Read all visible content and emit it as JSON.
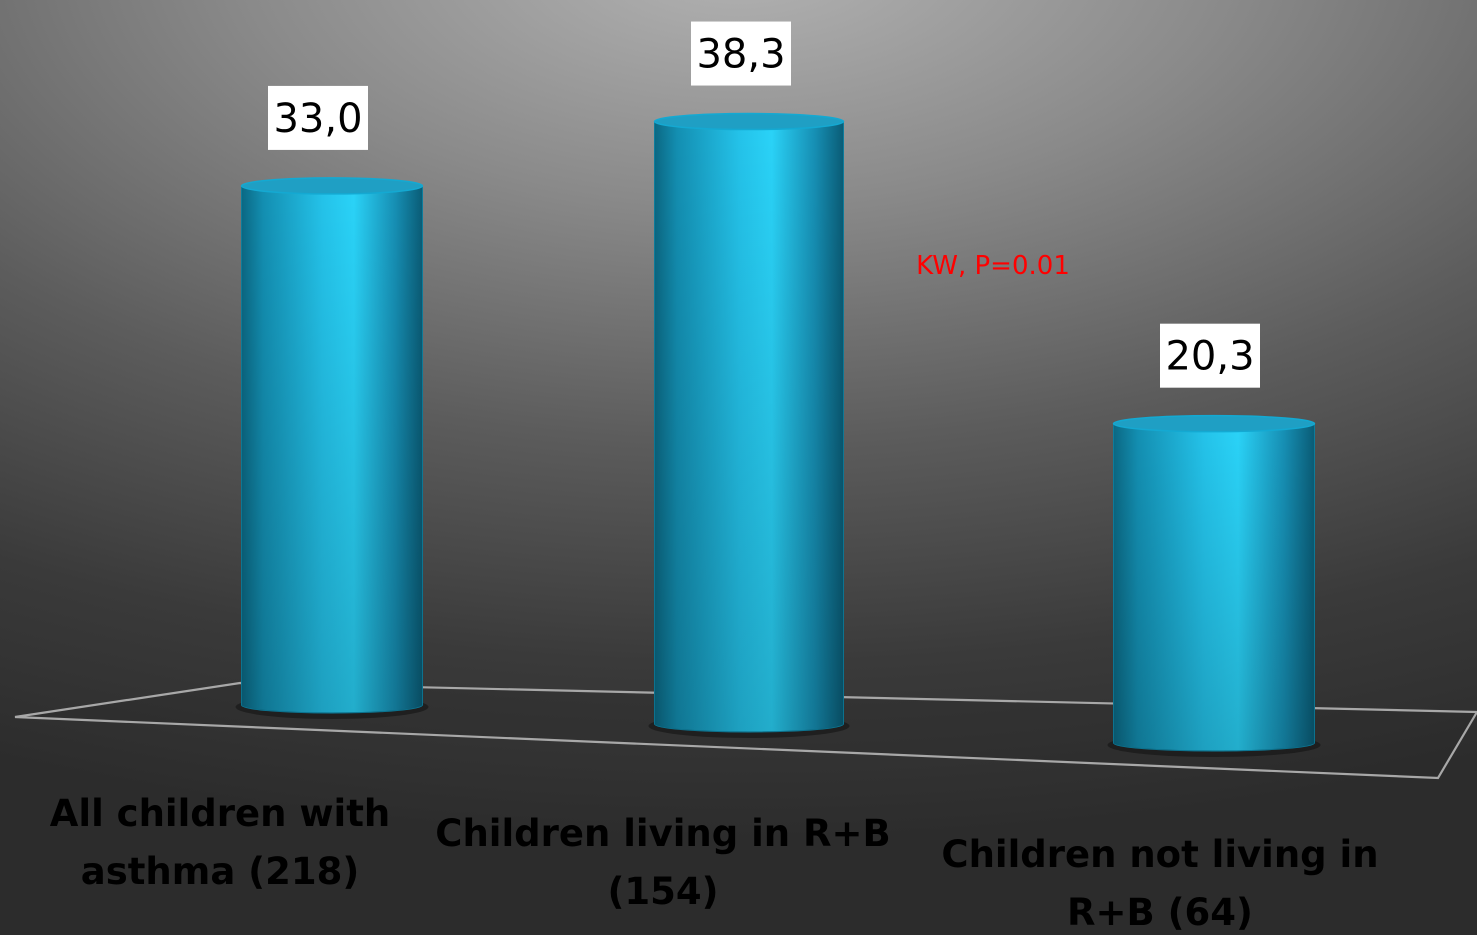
{
  "chart_data": {
    "type": "bar",
    "style": "3d-cylinder",
    "categories": [
      [
        "All children with",
        "asthma (218)"
      ],
      [
        "Children living in R+B",
        "(154)"
      ],
      [
        "Children not living in",
        "R+B (64)"
      ]
    ],
    "values": [
      33.0,
      38.3,
      20.3
    ],
    "data_labels": [
      "33,0",
      "38,3",
      "20,3"
    ],
    "annotation": "KW, P=0.01",
    "annotation_color": "#ff0000",
    "bar_color": "#1fa3c8",
    "bar_highlight_color": "#2ed0f5",
    "bar_shadow_color": "#0a5a72",
    "label_box_color": "#ffffff",
    "title": "",
    "xlabel": "",
    "ylabel": "",
    "ylim": [
      0,
      40
    ],
    "grid": false,
    "legend": "none"
  }
}
